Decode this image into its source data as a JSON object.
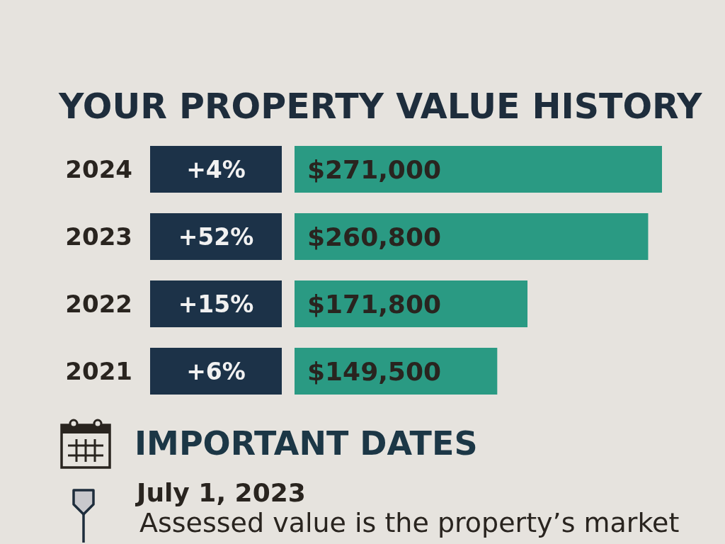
{
  "chart_data": {
    "type": "bar",
    "orientation": "horizontal",
    "title": "YOUR PROPERTY VALUE HISTORY",
    "categories": [
      "2024",
      "2023",
      "2022",
      "2021"
    ],
    "values": [
      271000,
      260800,
      171800,
      149500
    ],
    "value_labels": [
      "$271,000",
      "$260,800",
      "$171,800",
      "$149,500"
    ],
    "color": "#2a9a83",
    "annotations": [
      "+4%",
      "+52%",
      "+15%",
      "+6%",
      "IMPORTANT DATES",
      "July 1, 2023",
      "Assessed value is the property’s market"
    ]
  }
}
